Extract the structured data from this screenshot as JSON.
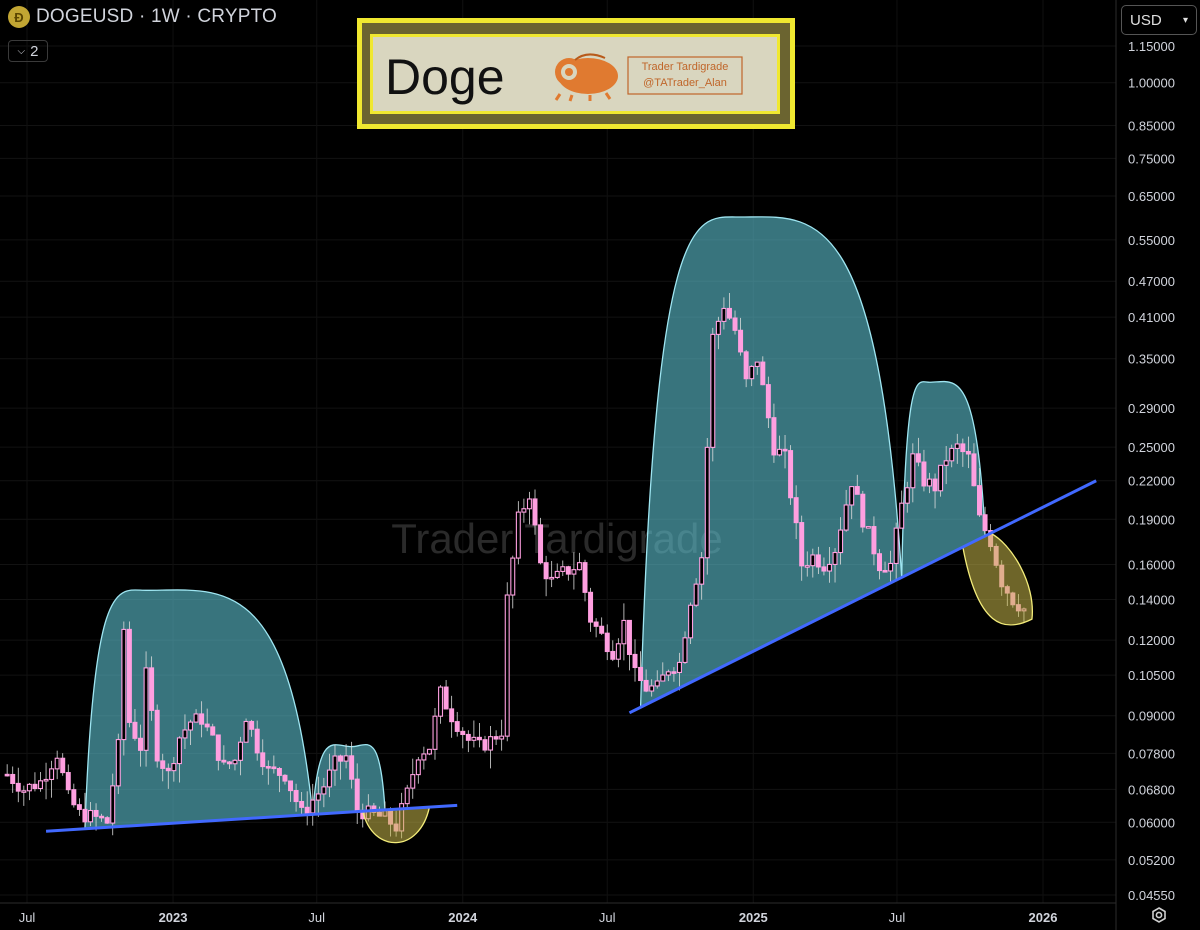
{
  "header": {
    "symbol_line": "DOGEUSD · 1W · CRYPTO",
    "collapse_count": "2",
    "currency": "USD"
  },
  "banner": {
    "title": "Doge",
    "tag_line1": "Trader Tardigrade",
    "tag_line2": "@TATrader_Alan"
  },
  "watermark": "Trader Tardigrade",
  "colors": {
    "candle_body": "#ff9fe0",
    "candle_outline": "#ffffff",
    "cup_fill": "#5ec2d1",
    "cup_outline": "#9fe6f2",
    "handle_fill": "#c8b84a",
    "trendline": "#4169ff",
    "banner_border": "#f0e830",
    "banner_bg": "#6b6430",
    "banner_inner": "#d9d6bf"
  },
  "chart_data": {
    "type": "candlestick",
    "scale": "log",
    "timeframe": "1W",
    "y_ticks": [
      "1.15000",
      "1.00000",
      "0.85000",
      "0.75000",
      "0.65000",
      "0.55000",
      "0.47000",
      "0.41000",
      "0.35000",
      "0.29000",
      "0.25000",
      "0.22000",
      "0.19000",
      "0.16000",
      "0.14000",
      "0.12000",
      "0.10500",
      "0.09000",
      "0.07800",
      "0.06800",
      "0.06000",
      "0.05200",
      "0.04550"
    ],
    "x_ticks": [
      {
        "label": "Jul",
        "date": "2022-07-01",
        "bold": false
      },
      {
        "label": "2023",
        "date": "2023-01-01",
        "bold": true
      },
      {
        "label": "Jul",
        "date": "2023-07-01",
        "bold": false
      },
      {
        "label": "2024",
        "date": "2024-01-01",
        "bold": true
      },
      {
        "label": "Jul",
        "date": "2024-07-01",
        "bold": false
      },
      {
        "label": "2025",
        "date": "2025-01-01",
        "bold": true
      },
      {
        "label": "Jul",
        "date": "2025-07-01",
        "bold": false
      },
      {
        "label": "2026",
        "date": "2026-01-01",
        "bold": true
      }
    ],
    "price_series_close": [
      [
        "2022-06-06",
        0.072
      ],
      [
        "2022-06-27",
        0.068
      ],
      [
        "2022-07-18",
        0.07
      ],
      [
        "2022-08-08",
        0.078
      ],
      [
        "2022-08-22",
        0.066
      ],
      [
        "2022-09-05",
        0.062
      ],
      [
        "2022-09-26",
        0.061
      ],
      [
        "2022-10-10",
        0.06
      ],
      [
        "2022-10-24",
        0.08
      ],
      [
        "2022-10-31",
        0.125
      ],
      [
        "2022-11-07",
        0.088
      ],
      [
        "2022-11-21",
        0.08
      ],
      [
        "2022-11-28",
        0.105
      ],
      [
        "2022-12-12",
        0.078
      ],
      [
        "2022-12-26",
        0.072
      ],
      [
        "2023-01-09",
        0.083
      ],
      [
        "2023-01-23",
        0.088
      ],
      [
        "2023-02-06",
        0.089
      ],
      [
        "2023-02-20",
        0.082
      ],
      [
        "2023-03-06",
        0.074
      ],
      [
        "2023-03-20",
        0.076
      ],
      [
        "2023-04-03",
        0.09
      ],
      [
        "2023-04-17",
        0.08
      ],
      [
        "2023-05-01",
        0.073
      ],
      [
        "2023-05-22",
        0.072
      ],
      [
        "2023-06-12",
        0.062
      ],
      [
        "2023-07-03",
        0.067
      ],
      [
        "2023-07-10",
        0.069
      ],
      [
        "2023-07-24",
        0.075
      ],
      [
        "2023-08-07",
        0.077
      ],
      [
        "2023-08-21",
        0.063
      ],
      [
        "2023-09-04",
        0.062
      ],
      [
        "2023-09-25",
        0.061
      ],
      [
        "2023-10-09",
        0.059
      ],
      [
        "2023-10-23",
        0.067
      ],
      [
        "2023-11-06",
        0.078
      ],
      [
        "2023-11-20",
        0.08
      ],
      [
        "2023-12-04",
        0.098
      ],
      [
        "2023-12-18",
        0.09
      ],
      [
        "2024-01-08",
        0.082
      ],
      [
        "2024-01-22",
        0.08
      ],
      [
        "2024-02-05",
        0.082
      ],
      [
        "2024-02-19",
        0.085
      ],
      [
        "2024-02-26",
        0.14
      ],
      [
        "2024-03-11",
        0.19
      ],
      [
        "2024-03-25",
        0.21
      ],
      [
        "2024-04-08",
        0.16
      ],
      [
        "2024-04-22",
        0.15
      ],
      [
        "2024-05-06",
        0.155
      ],
      [
        "2024-05-27",
        0.16
      ],
      [
        "2024-06-10",
        0.13
      ],
      [
        "2024-06-24",
        0.122
      ],
      [
        "2024-07-08",
        0.115
      ],
      [
        "2024-07-22",
        0.128
      ],
      [
        "2024-08-05",
        0.105
      ],
      [
        "2024-08-19",
        0.1
      ],
      [
        "2024-09-02",
        0.1
      ],
      [
        "2024-09-16",
        0.108
      ],
      [
        "2024-09-30",
        0.11
      ],
      [
        "2024-10-14",
        0.14
      ],
      [
        "2024-10-28",
        0.165
      ],
      [
        "2024-11-11",
        0.38
      ],
      [
        "2024-11-25",
        0.43
      ],
      [
        "2024-12-09",
        0.39
      ],
      [
        "2024-12-23",
        0.32
      ],
      [
        "2025-01-06",
        0.35
      ],
      [
        "2025-01-27",
        0.25
      ],
      [
        "2025-02-10",
        0.24
      ],
      [
        "2025-03-03",
        0.16
      ],
      [
        "2025-03-17",
        0.165
      ],
      [
        "2025-03-31",
        0.16
      ],
      [
        "2025-04-14",
        0.17
      ],
      [
        "2025-05-05",
        0.22
      ],
      [
        "2025-05-19",
        0.19
      ],
      [
        "2025-06-09",
        0.16
      ],
      [
        "2025-06-23",
        0.16
      ],
      [
        "2025-07-07",
        0.2
      ],
      [
        "2025-07-21",
        0.24
      ],
      [
        "2025-08-04",
        0.22
      ],
      [
        "2025-08-18",
        0.215
      ],
      [
        "2025-09-01",
        0.24
      ],
      [
        "2025-09-15",
        0.25
      ],
      [
        "2025-09-29",
        0.24
      ],
      [
        "2025-10-13",
        0.19
      ],
      [
        "2025-10-27",
        0.175
      ],
      [
        "2025-11-10",
        0.15
      ],
      [
        "2025-11-24",
        0.14
      ],
      [
        "2025-12-08",
        0.135
      ]
    ],
    "annotations": {
      "cups": [
        {
          "name": "cup-1",
          "peak_date": "2022-11-28",
          "peak_price": 0.145
        },
        {
          "name": "cup-2",
          "peak_date": "2023-08-14",
          "peak_price": 0.08
        },
        {
          "name": "cup-3",
          "peak_date": "2024-12-16",
          "peak_price": 0.6
        },
        {
          "name": "cup-4",
          "peak_date": "2025-08-11",
          "peak_price": 0.32
        }
      ],
      "handles": [
        {
          "name": "handle-1",
          "date": "2023-10-09",
          "low_price": 0.057
        },
        {
          "name": "handle-2",
          "date": "2025-11-10",
          "low_price": 0.128
        }
      ],
      "trendlines": [
        {
          "name": "trendline-1",
          "from": [
            "2022-07-25",
            0.058
          ],
          "to": [
            "2023-12-25",
            0.064
          ]
        },
        {
          "name": "trendline-2",
          "from": [
            "2024-07-29",
            0.091
          ],
          "to": [
            "2026-03-09",
            0.22
          ]
        }
      ]
    }
  }
}
